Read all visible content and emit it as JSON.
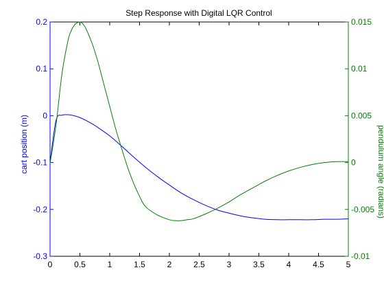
{
  "chart_data": {
    "type": "line",
    "title": "Step Response with Digital LQR Control",
    "xlabel": "",
    "xlim": [
      0,
      5
    ],
    "x_ticks": [
      "0",
      "0.5",
      "1",
      "1.5",
      "2",
      "2.5",
      "3",
      "3.5",
      "4",
      "4.5",
      "5"
    ],
    "grid": false,
    "left_axis": {
      "label": "cart position (m)",
      "color": "#0000ff",
      "ylim": [
        -0.3,
        0.2
      ],
      "ticks": [
        "-0.3",
        "-0.2",
        "-0.1",
        "0",
        "0.1",
        "0.2"
      ]
    },
    "right_axis": {
      "label": "pendulum angle (radians)",
      "color": "#008000",
      "ylim": [
        -0.01,
        0.015
      ],
      "ticks": [
        "-0.01",
        "-0.005",
        "0",
        "0.005",
        "0.01",
        "0.015"
      ]
    },
    "series": [
      {
        "axis": "left",
        "color": "#0000ff",
        "x": [
          0,
          0.1,
          0.2,
          0.3,
          0.4,
          0.5,
          0.6,
          0.7,
          0.8,
          1.0,
          1.2,
          1.4,
          1.6,
          1.8,
          2.0,
          2.2,
          2.4,
          2.6,
          2.8,
          3.0,
          3.2,
          3.4,
          3.6,
          3.8,
          4.0,
          4.2,
          4.4,
          4.6,
          4.8,
          5.0
        ],
        "y": [
          -0.1,
          -0.01,
          0.001,
          0.002,
          0.0,
          -0.004,
          -0.01,
          -0.017,
          -0.025,
          -0.043,
          -0.065,
          -0.088,
          -0.11,
          -0.13,
          -0.148,
          -0.165,
          -0.179,
          -0.191,
          -0.201,
          -0.208,
          -0.214,
          -0.218,
          -0.221,
          -0.222,
          -0.222,
          -0.222,
          -0.222,
          -0.221,
          -0.221,
          -0.22
        ]
      },
      {
        "axis": "right",
        "color": "#008000",
        "x": [
          0,
          0.1,
          0.2,
          0.3,
          0.35,
          0.4,
          0.45,
          0.5,
          0.55,
          0.6,
          0.7,
          0.8,
          0.9,
          1.0,
          1.1,
          1.2,
          1.3,
          1.4,
          1.5,
          1.6,
          1.8,
          2.0,
          2.1,
          2.2,
          2.3,
          2.4,
          2.6,
          2.8,
          3.0,
          3.2,
          3.4,
          3.6,
          3.8,
          4.0,
          4.2,
          4.4,
          4.6,
          4.8,
          5.0
        ],
        "y": [
          -0.0001,
          0.004,
          0.0095,
          0.013,
          0.014,
          0.0146,
          0.0149,
          0.015,
          0.0148,
          0.0143,
          0.0128,
          0.0108,
          0.0084,
          0.006,
          0.0036,
          0.0015,
          -0.0005,
          -0.0022,
          -0.0036,
          -0.0047,
          -0.0056,
          -0.0061,
          -0.0062,
          -0.0062,
          -0.0061,
          -0.006,
          -0.0055,
          -0.0049,
          -0.0042,
          -0.0034,
          -0.0027,
          -0.002,
          -0.0014,
          -0.0009,
          -0.0005,
          -0.0002,
          0.0,
          0.0001,
          0.0001
        ]
      }
    ]
  }
}
